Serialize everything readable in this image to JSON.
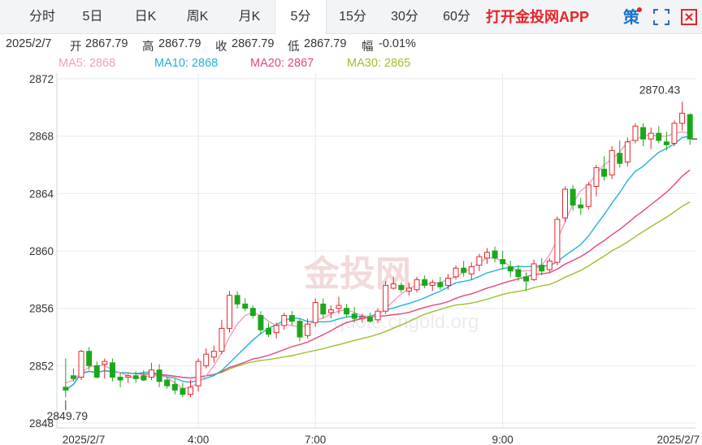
{
  "tabs": [
    {
      "label": "分时"
    },
    {
      "label": "5日"
    },
    {
      "label": "日K"
    },
    {
      "label": "周K"
    },
    {
      "label": "月K"
    },
    {
      "label": "5分"
    },
    {
      "label": "15分"
    },
    {
      "label": "30分"
    },
    {
      "label": "60分"
    }
  ],
  "active_tab": "5分",
  "promo": "打开金投网APP",
  "toolbar": {
    "strategy_label": "策"
  },
  "quote": {
    "date": "2025/2/7",
    "open_label": "开",
    "open": "2867.79",
    "high_label": "高",
    "high": "2867.79",
    "close_label": "收",
    "close": "2867.79",
    "low_label": "低",
    "low": "2867.79",
    "change_label": "幅",
    "change": "-0.01%"
  },
  "ma": [
    {
      "label": "MA5: 2868",
      "color": "#f19ec2"
    },
    {
      "label": "MA10: 2868",
      "color": "#20b2d6"
    },
    {
      "label": "MA20: 2867",
      "color": "#e8457c"
    },
    {
      "label": "MA30: 2865",
      "color": "#9cbf2b"
    }
  ],
  "watermark": {
    "brand": "金投网",
    "url": "quote.cngold.org"
  },
  "chart_data": {
    "type": "candlestick",
    "ylim": [
      2848,
      2872
    ],
    "yticks": [
      "2872",
      "2868",
      "2864",
      "2860",
      "2856",
      "2852",
      "2848"
    ],
    "xticks": [
      {
        "label": "2025/2/7",
        "index": 0
      },
      {
        "label": "4:00",
        "index": 17
      },
      {
        "label": "7:00",
        "index": 32
      },
      {
        "label": "9:00",
        "index": 56
      },
      {
        "label": "2025/2/7",
        "index": 79
      }
    ],
    "high_annotation": "2870.43",
    "low_annotation": "2849.79",
    "colors": {
      "up": "#e8232a",
      "down": "#1aa81a",
      "grid": "#e6e9ee",
      "axis": "#cfd4da"
    },
    "candles": [
      [
        2850.5,
        2852.5,
        2849.8,
        2850.3
      ],
      [
        2851.3,
        2851.8,
        2850.9,
        2851.1
      ],
      [
        2851.2,
        2853.1,
        2851.0,
        2853.0
      ],
      [
        2853.0,
        2853.3,
        2851.7,
        2852.0
      ],
      [
        2852.0,
        2852.3,
        2851.1,
        2851.2
      ],
      [
        2852.1,
        2852.5,
        2851.1,
        2852.3
      ],
      [
        2852.2,
        2852.5,
        2850.9,
        2851.2
      ],
      [
        2851.2,
        2851.5,
        2850.5,
        2851.0
      ],
      [
        2851.2,
        2851.4,
        2850.8,
        2851.3
      ],
      [
        2851.3,
        2851.6,
        2850.8,
        2851.1
      ],
      [
        2851.3,
        2851.7,
        2850.9,
        2851.0
      ],
      [
        2851.2,
        2852.2,
        2851.0,
        2851.7
      ],
      [
        2851.7,
        2852.1,
        2850.5,
        2850.9
      ],
      [
        2851.0,
        2851.2,
        2850.4,
        2850.6
      ],
      [
        2850.7,
        2851.1,
        2850.0,
        2850.3
      ],
      [
        2850.4,
        2850.8,
        2849.8,
        2850.0
      ],
      [
        2850.0,
        2851.0,
        2849.8,
        2850.5
      ],
      [
        2850.6,
        2852.5,
        2850.2,
        2852.3
      ],
      [
        2852.0,
        2853.2,
        2851.8,
        2852.8
      ],
      [
        2852.6,
        2853.4,
        2852.2,
        2853.0
      ],
      [
        2853.0,
        2855.2,
        2852.8,
        2854.6
      ],
      [
        2854.6,
        2857.2,
        2854.3,
        2856.9
      ],
      [
        2856.9,
        2857.2,
        2856.0,
        2856.3
      ],
      [
        2856.3,
        2856.7,
        2855.8,
        2856.0
      ],
      [
        2856.0,
        2856.2,
        2855.3,
        2855.5
      ],
      [
        2855.5,
        2855.8,
        2854.2,
        2854.5
      ],
      [
        2854.6,
        2855.0,
        2854.0,
        2854.2
      ],
      [
        2854.3,
        2855.0,
        2853.9,
        2854.8
      ],
      [
        2854.8,
        2855.7,
        2854.5,
        2855.5
      ],
      [
        2855.5,
        2855.8,
        2854.8,
        2855.1
      ],
      [
        2855.1,
        2855.3,
        2853.7,
        2854.0
      ],
      [
        2854.1,
        2855.3,
        2853.9,
        2854.9
      ],
      [
        2855.0,
        2856.7,
        2854.7,
        2856.4
      ],
      [
        2856.3,
        2856.7,
        2855.3,
        2855.6
      ],
      [
        2855.7,
        2856.2,
        2855.3,
        2855.9
      ],
      [
        2856.0,
        2856.8,
        2855.6,
        2856.2
      ],
      [
        2856.0,
        2856.3,
        2855.4,
        2855.6
      ],
      [
        2855.6,
        2856.1,
        2855.0,
        2855.3
      ],
      [
        2855.3,
        2855.6,
        2855.0,
        2855.4
      ],
      [
        2855.4,
        2855.7,
        2855.0,
        2855.1
      ],
      [
        2855.2,
        2856.0,
        2855.0,
        2855.8
      ],
      [
        2855.8,
        2857.9,
        2855.6,
        2857.6
      ],
      [
        2857.4,
        2858.2,
        2857.3,
        2857.7
      ],
      [
        2857.6,
        2857.8,
        2857.1,
        2857.3
      ],
      [
        2857.2,
        2857.8,
        2856.9,
        2857.4
      ],
      [
        2857.3,
        2858.2,
        2857.1,
        2858.0
      ],
      [
        2858.0,
        2858.3,
        2857.4,
        2857.6
      ],
      [
        2857.6,
        2858.0,
        2857.2,
        2857.8
      ],
      [
        2857.8,
        2858.2,
        2857.3,
        2857.5
      ],
      [
        2857.6,
        2858.4,
        2857.3,
        2858.1
      ],
      [
        2858.2,
        2859.0,
        2858.0,
        2858.8
      ],
      [
        2858.8,
        2859.3,
        2858.2,
        2858.5
      ],
      [
        2858.4,
        2859.2,
        2858.0,
        2858.9
      ],
      [
        2859.0,
        2859.8,
        2858.6,
        2859.6
      ],
      [
        2859.5,
        2860.2,
        2859.1,
        2859.9
      ],
      [
        2860.0,
        2860.3,
        2859.2,
        2859.5
      ],
      [
        2859.4,
        2860.0,
        2858.7,
        2859.1
      ],
      [
        2858.9,
        2859.3,
        2858.2,
        2858.6
      ],
      [
        2858.7,
        2859.0,
        2857.9,
        2858.2
      ],
      [
        2858.2,
        2858.5,
        2857.2,
        2857.9
      ],
      [
        2858.0,
        2859.4,
        2857.9,
        2859.1
      ],
      [
        2859.0,
        2859.5,
        2858.3,
        2858.6
      ],
      [
        2858.7,
        2859.5,
        2858.5,
        2859.3
      ],
      [
        2859.2,
        2862.4,
        2859.0,
        2862.2
      ],
      [
        2862.3,
        2864.5,
        2862.0,
        2864.3
      ],
      [
        2864.3,
        2864.6,
        2862.8,
        2863.2
      ],
      [
        2863.2,
        2863.7,
        2862.5,
        2863.0
      ],
      [
        2863.1,
        2864.8,
        2862.9,
        2864.6
      ],
      [
        2864.5,
        2866.0,
        2863.8,
        2865.8
      ],
      [
        2865.7,
        2866.6,
        2864.9,
        2865.2
      ],
      [
        2865.3,
        2867.3,
        2865.0,
        2867.0
      ],
      [
        2866.8,
        2867.7,
        2865.8,
        2866.1
      ],
      [
        2866.2,
        2867.9,
        2865.9,
        2867.6
      ],
      [
        2867.7,
        2868.9,
        2867.5,
        2868.7
      ],
      [
        2868.6,
        2868.9,
        2867.3,
        2867.8
      ],
      [
        2867.8,
        2868.6,
        2867.1,
        2868.2
      ],
      [
        2868.2,
        2868.7,
        2867.5,
        2867.7
      ],
      [
        2867.6,
        2868.3,
        2867.0,
        2867.4
      ],
      [
        2867.5,
        2869.1,
        2867.3,
        2868.9
      ],
      [
        2868.9,
        2870.4,
        2868.4,
        2869.6
      ],
      [
        2869.5,
        2869.6,
        2867.4,
        2867.8
      ]
    ],
    "ma_lines": {
      "MA5": [
        2850.8,
        2851.0,
        2851.5,
        2851.9,
        2852.0,
        2852.0,
        2851.7,
        2851.5,
        2851.3,
        2851.1,
        2851.2,
        2851.3,
        2851.3,
        2851.2,
        2850.8,
        2850.4,
        2850.5,
        2850.8,
        2851.3,
        2852.0,
        2852.9,
        2854.0,
        2854.9,
        2855.5,
        2855.7,
        2855.5,
        2855.1,
        2854.8,
        2854.9,
        2854.8,
        2854.7,
        2854.8,
        2855.2,
        2855.3,
        2855.6,
        2855.8,
        2855.9,
        2855.7,
        2855.5,
        2855.4,
        2855.5,
        2856.0,
        2856.5,
        2857.0,
        2857.4,
        2857.6,
        2857.7,
        2857.7,
        2857.8,
        2858.0,
        2858.2,
        2858.5,
        2858.8,
        2859.2,
        2859.5,
        2859.5,
        2859.3,
        2858.9,
        2858.6,
        2858.6,
        2858.7,
        2859.0,
        2859.7,
        2860.8,
        2862.0,
        2863.3,
        2864.2,
        2864.6,
        2865.4,
        2866.0,
        2866.4,
        2866.9,
        2867.6,
        2867.8,
        2868.0,
        2868.1,
        2868.0,
        2868.0,
        2868.2,
        2868.3,
        2868.2
      ]
    }
  }
}
